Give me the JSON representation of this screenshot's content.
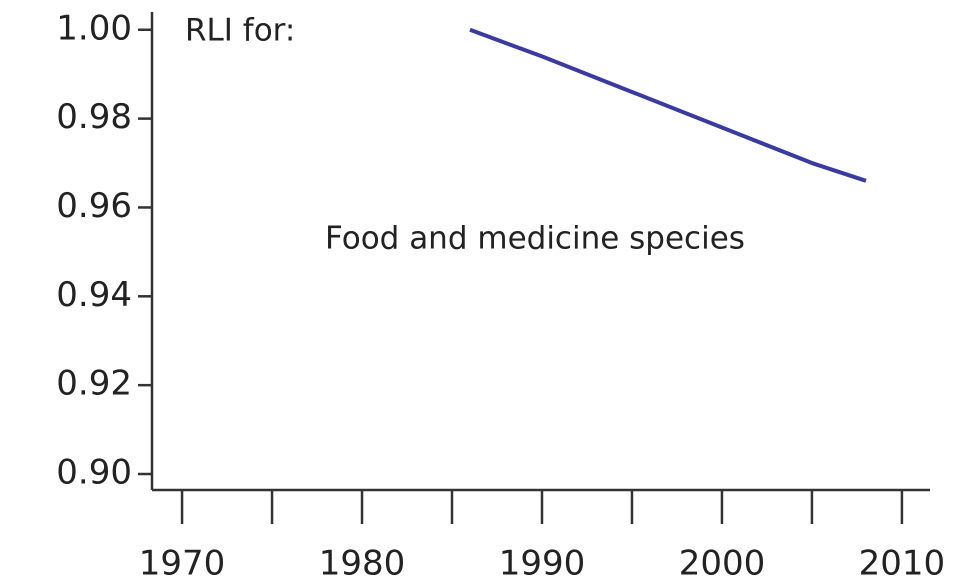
{
  "chart_data": {
    "type": "line",
    "title": "RLI for:",
    "annotation": "Food and medicine species",
    "x": [
      1986,
      1990,
      1995,
      2000,
      2005,
      2008
    ],
    "series": [
      {
        "name": "Food and medicine species",
        "color": "#3a3aa0",
        "values": [
          1.0,
          0.994,
          0.986,
          0.978,
          0.97,
          0.966
        ]
      }
    ],
    "xlim": [
      1968.33,
      2011.56
    ],
    "xticks": [
      1970,
      1980,
      1990,
      2000,
      2010
    ],
    "x_minor_ticks": [
      1975,
      1985,
      1995,
      2005
    ],
    "ylim": [
      0.8964,
      1.004
    ],
    "yticks": [
      {
        "value": 1.0,
        "label": "1.00"
      },
      0.98,
      0.96,
      0.94,
      0.92,
      {
        "value": 0.9,
        "label": "0.90"
      }
    ],
    "grid": false
  }
}
